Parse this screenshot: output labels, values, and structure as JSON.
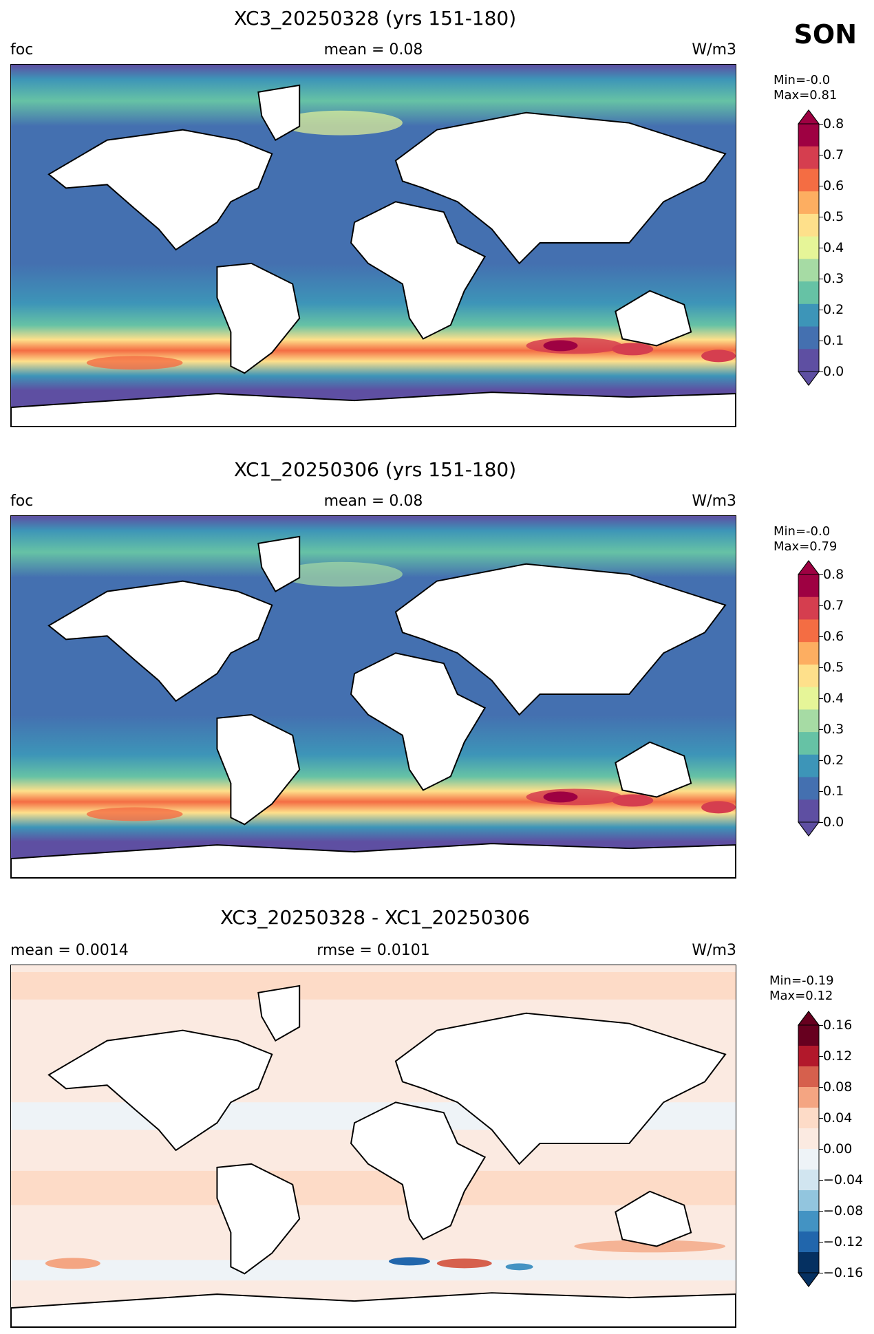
{
  "season": "SON",
  "panels": [
    {
      "title": "XC3_20250328 (yrs 151-180)",
      "left_label": "foc",
      "center_label": "mean = 0.08",
      "right_label": "W/m3",
      "stats_min": "Min=-0.0",
      "stats_max": "Max=0.81",
      "colorbar_ticks": [
        "0.8",
        "0.7",
        "0.6",
        "0.5",
        "0.4",
        "0.3",
        "0.2",
        "0.1",
        "0.0"
      ],
      "colormap": [
        "#5e4fa2",
        "#4470b0",
        "#3d95b8",
        "#66c2a5",
        "#a6dba4",
        "#e6f598",
        "#fee08b",
        "#fdae61",
        "#f46d43",
        "#d53e4f",
        "#9e0142"
      ]
    },
    {
      "title": "XC1_20250306 (yrs 151-180)",
      "left_label": "foc",
      "center_label": "mean = 0.08",
      "right_label": "W/m3",
      "stats_min": "Min=-0.0",
      "stats_max": "Max=0.79",
      "colorbar_ticks": [
        "0.8",
        "0.7",
        "0.6",
        "0.5",
        "0.4",
        "0.3",
        "0.2",
        "0.1",
        "0.0"
      ],
      "colormap": [
        "#5e4fa2",
        "#4470b0",
        "#3d95b8",
        "#66c2a5",
        "#a6dba4",
        "#e6f598",
        "#fee08b",
        "#fdae61",
        "#f46d43",
        "#d53e4f",
        "#9e0142"
      ]
    },
    {
      "title": "XC3_20250328 - XC1_20250306",
      "left_label": "mean = 0.0014",
      "center_label": "rmse = 0.0101",
      "right_label": "W/m3",
      "stats_min": "Min=-0.19",
      "stats_max": "Max=0.12",
      "colorbar_ticks": [
        "0.16",
        "0.12",
        "0.08",
        "0.04",
        "0.00",
        "−0.04",
        "−0.08",
        "−0.12",
        "−0.16"
      ],
      "colormap": [
        "#053061",
        "#2166ac",
        "#4393c3",
        "#92c5de",
        "#d1e5f0",
        "#eef3f7",
        "#fbeae1",
        "#fddbc7",
        "#f4a582",
        "#d6604d",
        "#b2182b",
        "#67001f"
      ]
    }
  ]
}
